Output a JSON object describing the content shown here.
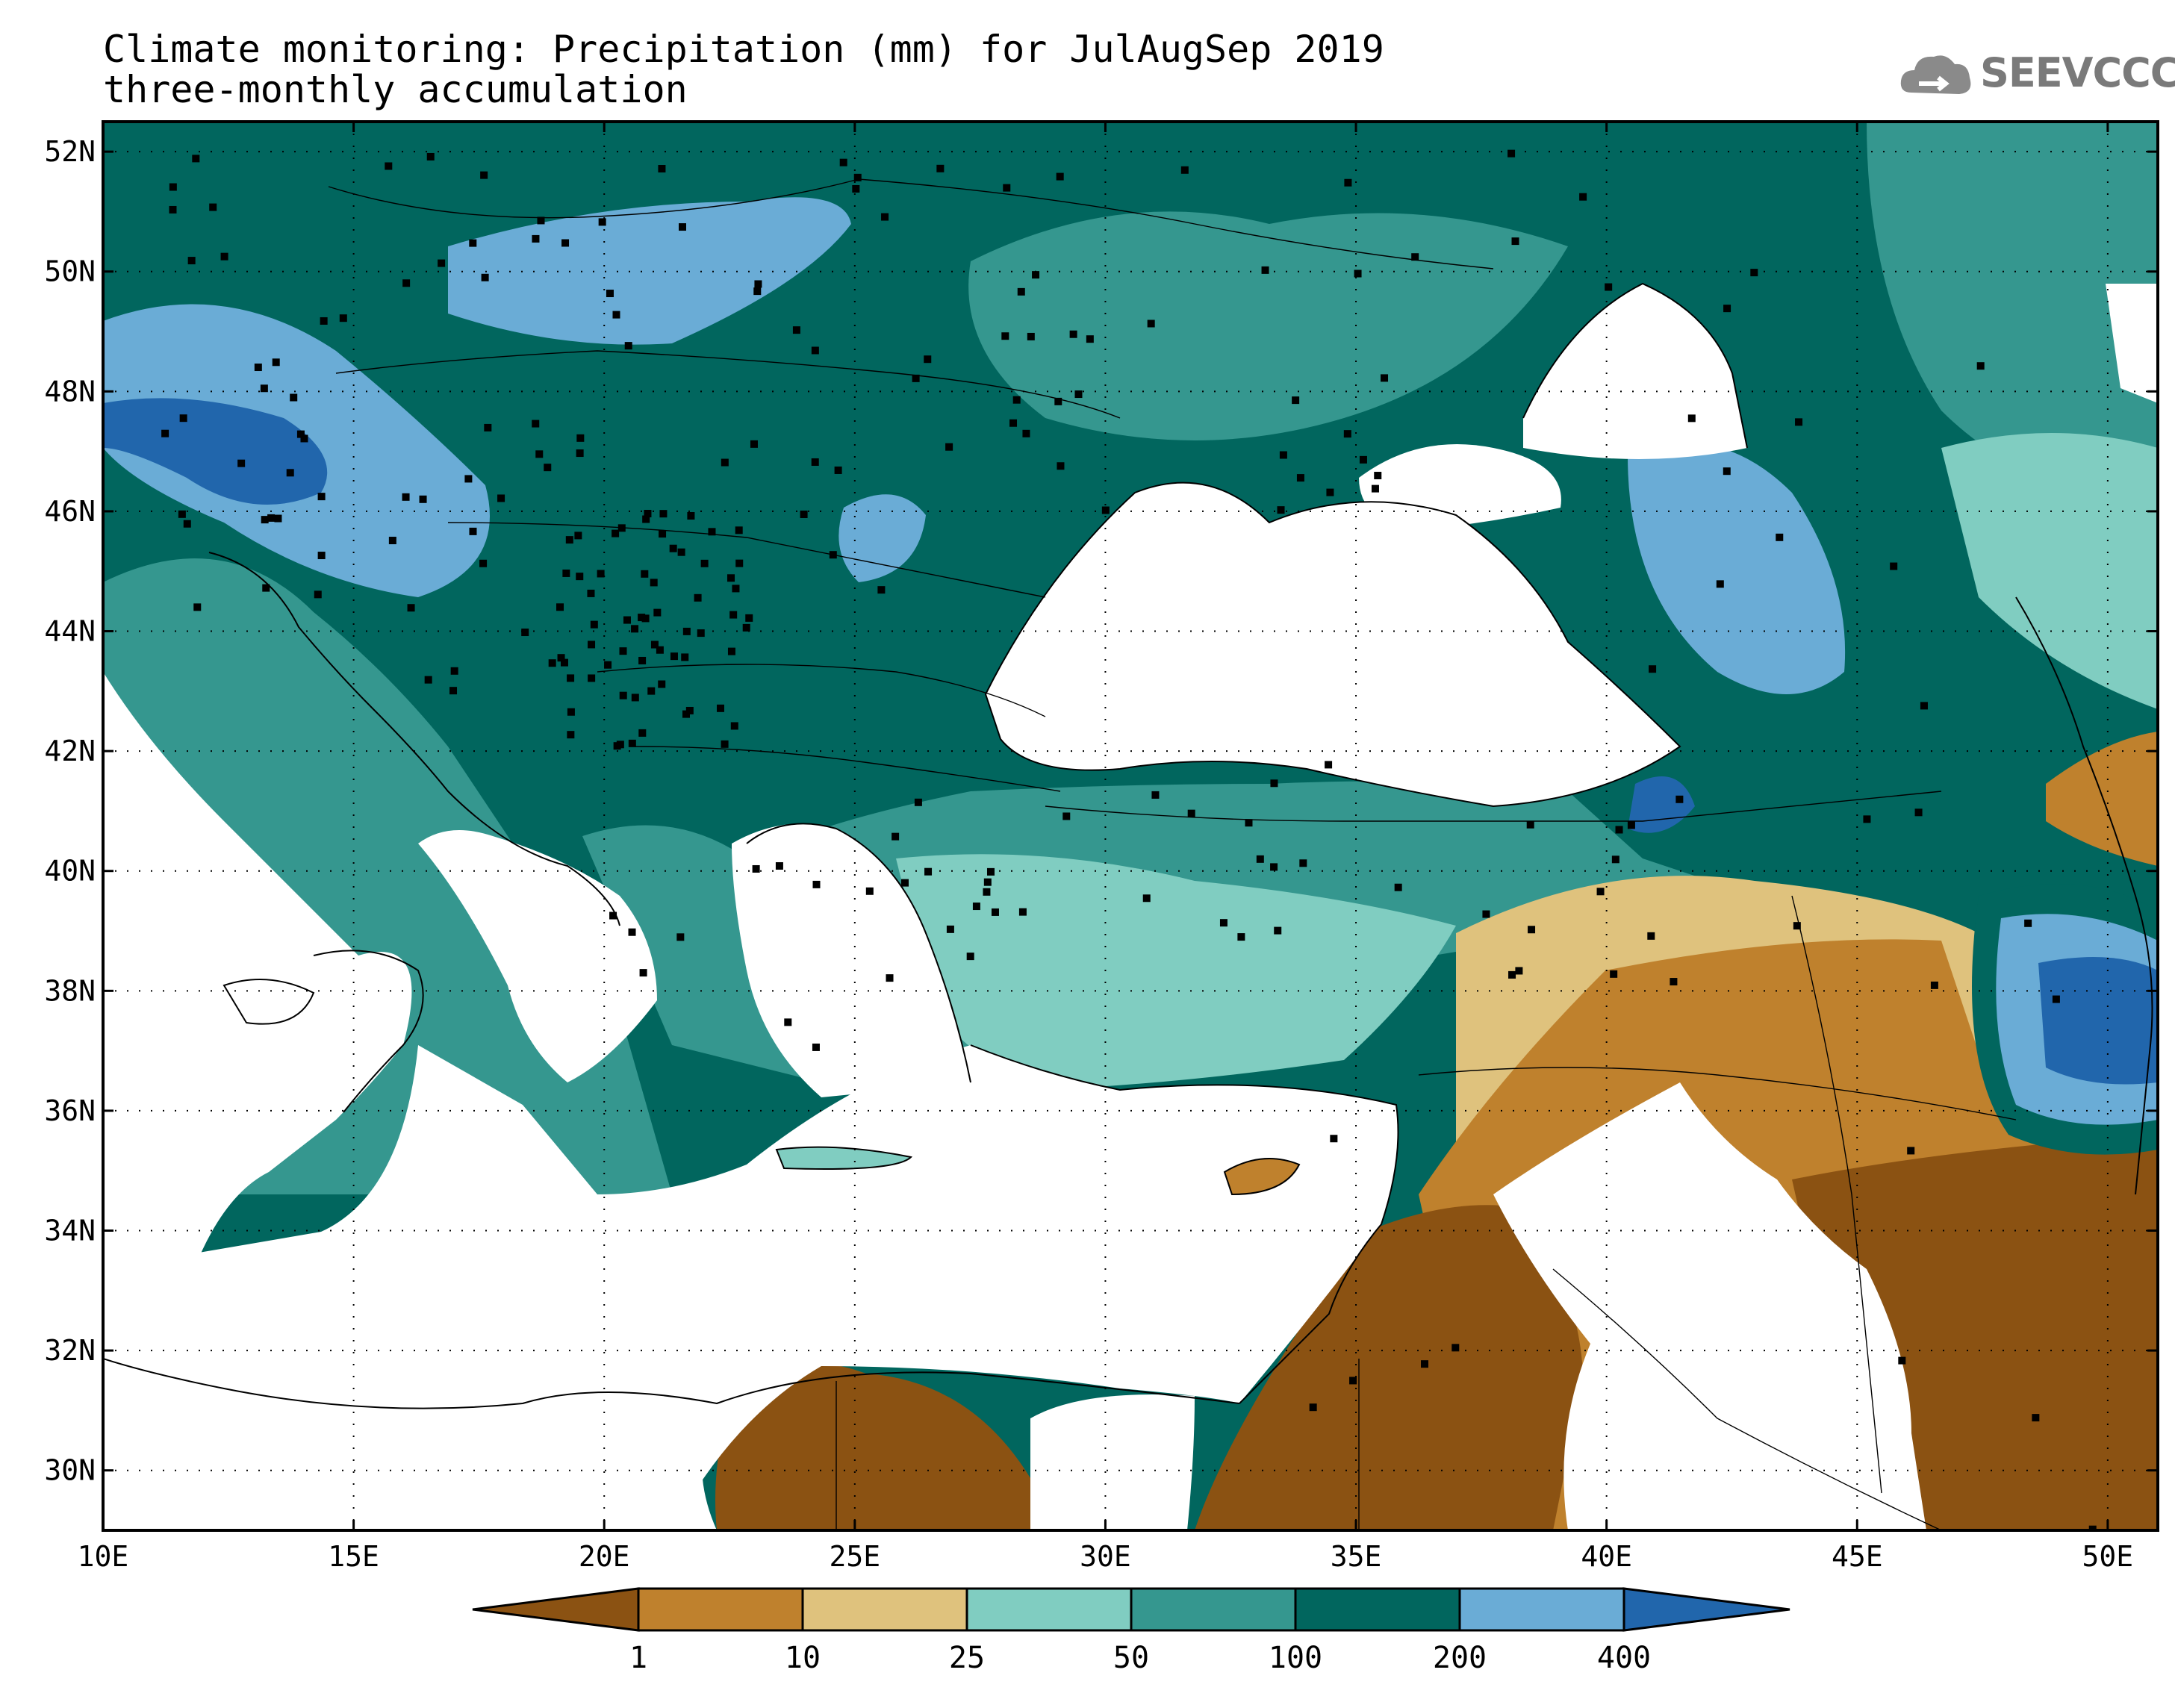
{
  "title": {
    "line1": "Climate monitoring: Precipitation (mm) for JulAugSep 2019",
    "line2": "three-monthly accumulation"
  },
  "logo": {
    "text": "SEEVCCC",
    "icon": "cloud-icon"
  },
  "map": {
    "lon_range": [
      10,
      51
    ],
    "lat_range": [
      29,
      52.5
    ],
    "lon_ticks": [
      "10E",
      "15E",
      "20E",
      "25E",
      "30E",
      "35E",
      "40E",
      "45E",
      "50E"
    ],
    "lat_ticks": [
      "52N",
      "50N",
      "48N",
      "46N",
      "44N",
      "42N",
      "40N",
      "38N",
      "36N",
      "34N",
      "32N",
      "30N"
    ],
    "gridlines": true
  },
  "legend": {
    "thresholds": [
      "1",
      "10",
      "25",
      "50",
      "100",
      "200",
      "400"
    ],
    "colors": [
      "#8b5212",
      "#bf812d",
      "#dfc27d",
      "#80cdc1",
      "#35978f",
      "#01665e",
      "#6aacd6",
      "#2166ac"
    ]
  }
}
